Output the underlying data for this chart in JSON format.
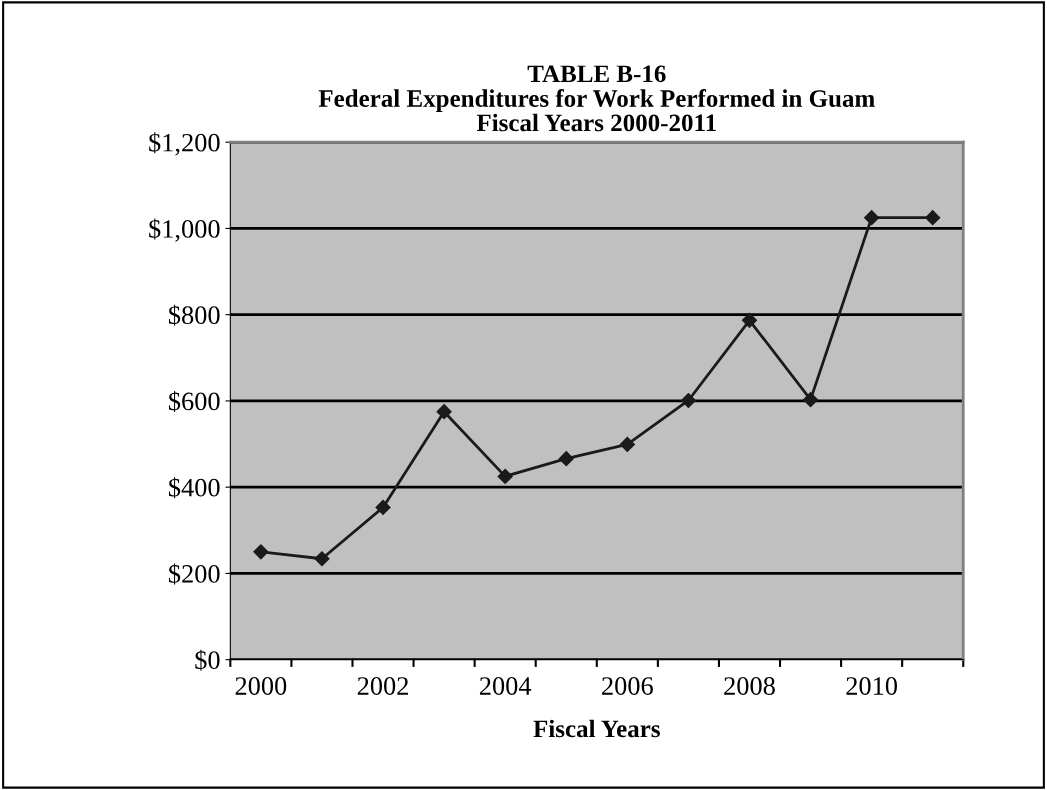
{
  "chart_data": {
    "type": "line",
    "title": "TABLE B-16\nFederal Expenditures for Work Performed in Guam\nFiscal Years 2000-2011",
    "xlabel": "Fiscal Years",
    "categories": [
      "2000",
      null,
      "2002",
      null,
      "2004",
      null,
      "2006",
      null,
      "2008",
      null,
      "2010",
      null
    ],
    "series": [
      {
        "color": "#1a1a1a",
        "values": [
          250,
          234,
          353,
          575,
          425,
          466,
          499,
          601,
          787,
          603,
          1025,
          1025
        ]
      }
    ],
    "ylim": [
      0,
      1200
    ],
    "yticks": [
      {
        "value": 0,
        "label": "$0"
      },
      {
        "value": 200,
        "label": "$200"
      },
      {
        "value": 400,
        "label": "$400"
      },
      {
        "value": 600,
        "label": "$600"
      },
      {
        "value": 800,
        "label": "$800"
      },
      {
        "value": 1000,
        "label": "$1,000"
      },
      {
        "value": 1200,
        "label": "$1,200"
      }
    ],
    "grid": "y",
    "marker": "diamond",
    "line_style": "solid",
    "legend": false
  }
}
